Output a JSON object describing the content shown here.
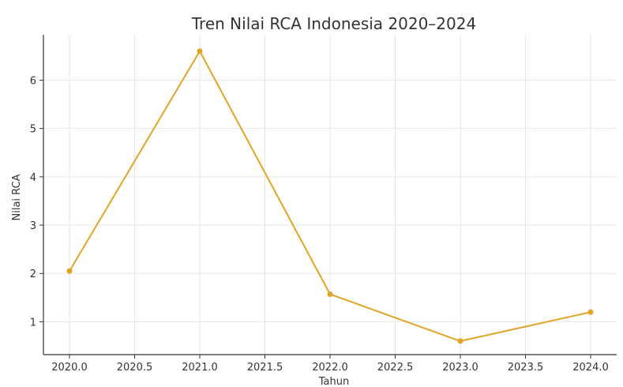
{
  "chart_data": {
    "type": "line",
    "title": "Tren Nilai RCA Indonesia 2020–2024",
    "xlabel": "Tahun",
    "ylabel": "Nilai RCA",
    "x": [
      2020,
      2021,
      2022,
      2023,
      2024
    ],
    "series": [
      {
        "values": [
          2.05,
          6.6,
          1.57,
          0.6,
          1.2
        ],
        "color": "#e0a526"
      }
    ],
    "xticks": [
      "2020.0",
      "2020.5",
      "2021.0",
      "2021.5",
      "2022.0",
      "2022.5",
      "2023.0",
      "2023.5",
      "2024.0"
    ],
    "yticks": [
      "1",
      "2",
      "3",
      "4",
      "5",
      "6"
    ],
    "xlim": [
      2019.8,
      2024.2
    ],
    "ylim": [
      0.32,
      6.94
    ],
    "grid": true,
    "legend": "none"
  }
}
